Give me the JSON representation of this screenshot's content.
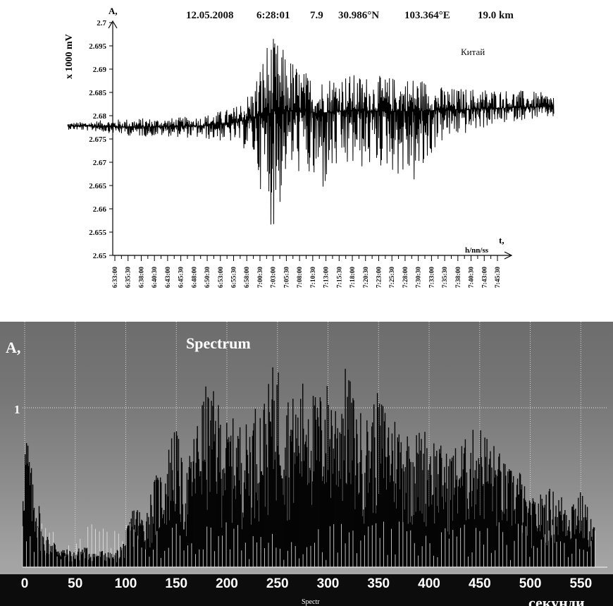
{
  "chart_data": [
    {
      "type": "line",
      "header": {
        "date": "12.05.2008",
        "time": "6:28:01",
        "magnitude": "7.9",
        "latitude": "30.986°N",
        "longitude": "103.364°E",
        "depth": "19.0 km"
      },
      "annotation": "Китай",
      "ylabel": "x 1000 mV",
      "y_axis_symbol": "A,",
      "xlabel_symbol": "t,",
      "xlabel_units": "h/nn/ss",
      "ylim": [
        2.65,
        2.7
      ],
      "yticks": [
        "2.7",
        "2.695",
        "2.69",
        "2.685",
        "2.68",
        "2.675",
        "2.67",
        "2.665",
        "2.66",
        "2.655",
        "2.65"
      ],
      "xticks": [
        "6:33:00",
        "6:35:30",
        "6:38:00",
        "6:40:30",
        "6:43:00",
        "6:45:30",
        "6:48:00",
        "6:50:30",
        "6:53:00",
        "6:55:30",
        "6:58:00",
        "7:00:30",
        "7:03:00",
        "7:05:30",
        "7:08:00",
        "7:10:30",
        "7:13:00",
        "7:15:30",
        "7:18:00",
        "7:20:30",
        "7:23:00",
        "7:25:30",
        "7:28:00",
        "7:30:30",
        "7:33:00",
        "7:35:30",
        "7:38:00",
        "7:40:30",
        "7:43:00",
        "7:45:30"
      ],
      "x": [
        "6:33:00",
        "6:38:00",
        "6:43:00",
        "6:48:00",
        "6:53:00",
        "6:58:00",
        "7:00:30",
        "7:03:00",
        "7:04:00",
        "7:05:30",
        "7:08:00",
        "7:10:30",
        "7:13:00",
        "7:15:30",
        "7:20:30",
        "7:25:30",
        "7:28:00",
        "7:30:30",
        "7:35:30",
        "7:40:30",
        "7:45:30"
      ],
      "baseline": [
        2.6778,
        2.6778,
        2.6775,
        2.6777,
        2.6778,
        2.6785,
        2.6795,
        2.6805,
        2.681,
        2.681,
        2.681,
        2.6805,
        2.681,
        2.681,
        2.681,
        2.681,
        2.6812,
        2.6812,
        2.6815,
        2.6818,
        2.682
      ],
      "upper": [
        2.6785,
        2.679,
        2.6795,
        2.6795,
        2.68,
        2.682,
        2.686,
        2.6975,
        2.6965,
        2.694,
        2.69,
        2.688,
        2.6895,
        2.689,
        2.6885,
        2.6885,
        2.6865,
        2.686,
        2.686,
        2.6855,
        2.6848
      ],
      "lower": [
        2.677,
        2.6765,
        2.6755,
        2.6755,
        2.675,
        2.674,
        2.6715,
        2.657,
        2.6545,
        2.6665,
        2.6675,
        2.6615,
        2.667,
        2.668,
        2.6685,
        2.664,
        2.6735,
        2.675,
        2.6775,
        2.679,
        2.6795
      ]
    },
    {
      "type": "bar",
      "title": "Spectrum",
      "ylabel": "A,",
      "y_tick": "1",
      "xlabel": "секунди",
      "footer_label": "Spectr",
      "xlim": [
        0,
        570
      ],
      "xticks": [
        0,
        50,
        100,
        150,
        200,
        250,
        300,
        350,
        400,
        450,
        500,
        550
      ],
      "x": [
        0,
        3,
        6,
        10,
        15,
        20,
        30,
        40,
        50,
        60,
        70,
        80,
        90,
        100,
        110,
        120,
        130,
        140,
        150,
        160,
        170,
        180,
        190,
        200,
        210,
        220,
        230,
        240,
        250,
        260,
        270,
        280,
        290,
        300,
        310,
        320,
        330,
        340,
        350,
        360,
        370,
        380,
        390,
        400,
        410,
        420,
        430,
        440,
        450,
        460,
        470,
        480,
        490,
        500,
        510,
        520,
        530,
        540,
        550,
        560,
        565
      ],
      "values": [
        0.75,
        0.9,
        0.78,
        0.52,
        0.45,
        0.22,
        0.18,
        0.12,
        0.1,
        0.14,
        0.1,
        0.11,
        0.08,
        0.18,
        0.42,
        0.33,
        0.57,
        0.64,
        0.96,
        0.56,
        0.88,
        1.14,
        1.1,
        0.92,
        0.94,
        0.9,
        1.03,
        1.08,
        1.34,
        1.12,
        1.06,
        1.24,
        1.07,
        1.18,
        1.09,
        1.28,
        1.0,
        0.96,
        1.1,
        1.02,
        0.95,
        0.88,
        0.86,
        0.89,
        0.8,
        0.72,
        0.79,
        0.82,
        0.92,
        0.84,
        0.74,
        0.62,
        0.66,
        0.42,
        0.46,
        0.5,
        0.47,
        0.44,
        0.5,
        0.36,
        0.28
      ]
    }
  ]
}
